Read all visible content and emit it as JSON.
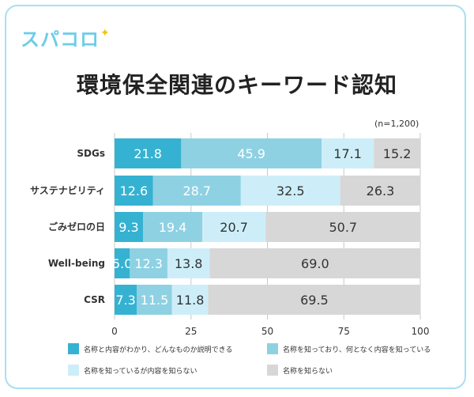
{
  "brand": {
    "logo_text": "スパコロ",
    "logo_spark": "✦"
  },
  "colors": [
    "#35b2d2",
    "#8ed1e3",
    "#cdeef8",
    "#d7d7d7"
  ],
  "chart_data": {
    "type": "bar",
    "orientation": "horizontal-stacked",
    "title": "環境保全関連のキーワード認知",
    "sample_note": "(n=1,200)",
    "categories": [
      "SDGs",
      "サステナビリティ",
      "ごみゼロの日",
      "Well-being",
      "CSR"
    ],
    "series": [
      {
        "name": "名称と内容がわかり、どんなものか説明できる",
        "values": [
          21.8,
          12.6,
          9.3,
          5.0,
          7.3
        ]
      },
      {
        "name": "名称を知っており、何となく内容を知っている",
        "values": [
          45.9,
          28.7,
          19.4,
          12.3,
          11.5
        ]
      },
      {
        "name": "名称を知っているが内容を知らない",
        "values": [
          17.1,
          32.5,
          20.7,
          13.8,
          11.8
        ]
      },
      {
        "name": "名称を知らない",
        "values": [
          15.2,
          26.3,
          50.7,
          69.0,
          69.5
        ]
      }
    ],
    "value_labels": [
      [
        "21.8",
        "45.9",
        "17.1",
        "15.2"
      ],
      [
        "12.6",
        "28.7",
        "32.5",
        "26.3"
      ],
      [
        "9.3",
        "19.4",
        "20.7",
        "50.7"
      ],
      [
        "5.0",
        "12.3",
        "13.8",
        "69.0"
      ],
      [
        "7.3",
        "11.5",
        "11.8",
        "69.5"
      ]
    ],
    "xticks": [
      "0",
      "25",
      "50",
      "75",
      "100"
    ],
    "xlim": [
      0,
      100
    ],
    "legend_position": "bottom"
  }
}
